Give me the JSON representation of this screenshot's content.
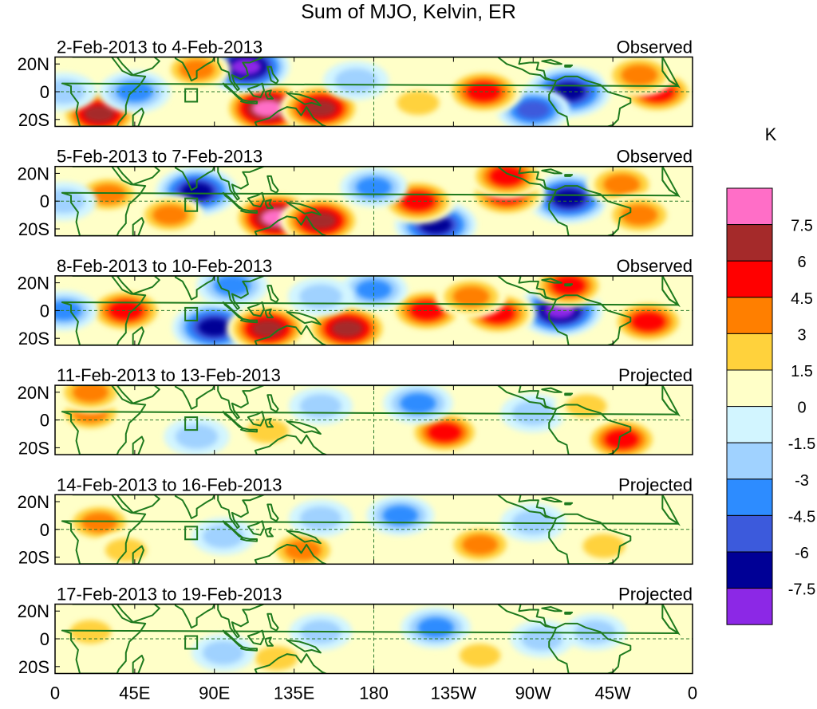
{
  "chart_data": {
    "type": "heatmap",
    "title": "Sum of MJO, Kelvin, ER",
    "units": "K",
    "x_ticks": [
      "0",
      "45E",
      "90E",
      "135E",
      "180",
      "135W",
      "90W",
      "45W",
      "0"
    ],
    "y_ticks": [
      "20N",
      "0",
      "20S"
    ],
    "x_range_deg_east": [
      0,
      360
    ],
    "y_range_deg": [
      -25,
      25
    ],
    "colorbar": {
      "labels": [
        "7.5",
        "6",
        "4.5",
        "3",
        "1.5",
        "0",
        "-1.5",
        "-3",
        "-4.5",
        "-6",
        "-7.5"
      ],
      "colors": [
        "#ff6ec7",
        "#a52a2a",
        "#ff0000",
        "#ff7f00",
        "#ffd23c",
        "#ffffc8",
        "#d2f5ff",
        "#a0d2ff",
        "#2d8cff",
        "#3c5adc",
        "#000096",
        "#8c28e6"
      ]
    },
    "panels": [
      {
        "period": "2-Feb-2013 to 4-Feb-2013",
        "status": "Observed",
        "anomalies": [
          {
            "lon": 120,
            "lat": -12,
            "value": 8.2
          },
          {
            "lon": 150,
            "lat": -12,
            "value": 6.5
          },
          {
            "lon": 25,
            "lat": -16,
            "value": 6.0
          },
          {
            "lon": 108,
            "lat": 18,
            "value": -7.8
          },
          {
            "lon": 290,
            "lat": 0,
            "value": -7.2
          },
          {
            "lon": 270,
            "lat": -13,
            "value": -4.5
          },
          {
            "lon": 242,
            "lat": 0,
            "value": 5.5
          },
          {
            "lon": 340,
            "lat": 0,
            "value": 5.0
          },
          {
            "lon": 330,
            "lat": 12,
            "value": 4.0
          },
          {
            "lon": 45,
            "lat": 0,
            "value": -4.0
          },
          {
            "lon": 80,
            "lat": 16,
            "value": 3.0
          },
          {
            "lon": 170,
            "lat": 8,
            "value": -2.5
          },
          {
            "lon": 5,
            "lat": 0,
            "value": -2.5
          },
          {
            "lon": 205,
            "lat": -8,
            "value": 2.5
          }
        ]
      },
      {
        "period": "5-Feb-2013 to 7-Feb-2013",
        "status": "Observed",
        "anomalies": [
          {
            "lon": 125,
            "lat": -12,
            "value": 8.0
          },
          {
            "lon": 150,
            "lat": -14,
            "value": 6.5
          },
          {
            "lon": 80,
            "lat": 7,
            "value": -6.5
          },
          {
            "lon": 290,
            "lat": 2,
            "value": -7.0
          },
          {
            "lon": 215,
            "lat": -17,
            "value": -6.5
          },
          {
            "lon": 205,
            "lat": 0,
            "value": 5.0
          },
          {
            "lon": 255,
            "lat": 5,
            "value": 5.5
          },
          {
            "lon": 255,
            "lat": 18,
            "value": 5.0
          },
          {
            "lon": 320,
            "lat": 12,
            "value": 4.0
          },
          {
            "lon": 330,
            "lat": -10,
            "value": 4.0
          },
          {
            "lon": 30,
            "lat": 5,
            "value": 3.0
          },
          {
            "lon": 65,
            "lat": -10,
            "value": 3.0
          },
          {
            "lon": 180,
            "lat": 10,
            "value": -3.0
          },
          {
            "lon": 5,
            "lat": 0,
            "value": -2.5
          }
        ]
      },
      {
        "period": "8-Feb-2013 to 10-Feb-2013",
        "status": "Observed",
        "anomalies": [
          {
            "lon": 90,
            "lat": -12,
            "value": -7.2
          },
          {
            "lon": 120,
            "lat": -13,
            "value": 6.5
          },
          {
            "lon": 165,
            "lat": -13,
            "value": 7.0
          },
          {
            "lon": 40,
            "lat": 0,
            "value": 5.5
          },
          {
            "lon": 285,
            "lat": 0,
            "value": -7.5
          },
          {
            "lon": 210,
            "lat": 0,
            "value": 5.0
          },
          {
            "lon": 250,
            "lat": -2,
            "value": 5.0
          },
          {
            "lon": 235,
            "lat": 10,
            "value": 4.0
          },
          {
            "lon": 290,
            "lat": 18,
            "value": 4.5
          },
          {
            "lon": 335,
            "lat": -8,
            "value": 5.0
          },
          {
            "lon": 100,
            "lat": 18,
            "value": -4.0
          },
          {
            "lon": 5,
            "lat": 0,
            "value": -3.0
          },
          {
            "lon": 180,
            "lat": 15,
            "value": -3.0
          },
          {
            "lon": 150,
            "lat": 10,
            "value": -2.5
          }
        ]
      },
      {
        "period": "11-Feb-2013 to 13-Feb-2013",
        "status": "Projected",
        "anomalies": [
          {
            "lon": 20,
            "lat": 5,
            "value": 3.0
          },
          {
            "lon": 20,
            "lat": 20,
            "value": 3.5
          },
          {
            "lon": 220,
            "lat": -9,
            "value": 4.5
          },
          {
            "lon": 320,
            "lat": -14,
            "value": 5.0
          },
          {
            "lon": 205,
            "lat": 12,
            "value": -3.5
          },
          {
            "lon": 270,
            "lat": 5,
            "value": -2.5
          },
          {
            "lon": 120,
            "lat": -8,
            "value": 2.5
          },
          {
            "lon": 80,
            "lat": -12,
            "value": -2.5
          },
          {
            "lon": 150,
            "lat": 10,
            "value": -2.0
          },
          {
            "lon": 300,
            "lat": 10,
            "value": 1.8
          }
        ]
      },
      {
        "period": "14-Feb-2013 to 16-Feb-2013",
        "status": "Projected",
        "anomalies": [
          {
            "lon": 25,
            "lat": 5,
            "value": 3.5
          },
          {
            "lon": 140,
            "lat": -15,
            "value": 4.0
          },
          {
            "lon": 240,
            "lat": -11,
            "value": 3.5
          },
          {
            "lon": 310,
            "lat": -12,
            "value": 2.5
          },
          {
            "lon": 195,
            "lat": 10,
            "value": -3.0
          },
          {
            "lon": 270,
            "lat": 5,
            "value": -2.5
          },
          {
            "lon": 95,
            "lat": -5,
            "value": -2.0
          },
          {
            "lon": 150,
            "lat": 8,
            "value": -2.0
          },
          {
            "lon": 40,
            "lat": -15,
            "value": 2.0
          }
        ]
      },
      {
        "period": "17-Feb-2013 to 19-Feb-2013",
        "status": "Projected",
        "anomalies": [
          {
            "lon": 20,
            "lat": 5,
            "value": 2.0
          },
          {
            "lon": 125,
            "lat": -14,
            "value": 2.5
          },
          {
            "lon": 215,
            "lat": 8,
            "value": -3.5
          },
          {
            "lon": 275,
            "lat": 0,
            "value": -2.0
          },
          {
            "lon": 305,
            "lat": 5,
            "value": -1.8
          },
          {
            "lon": 240,
            "lat": -12,
            "value": 1.8
          },
          {
            "lon": 95,
            "lat": -10,
            "value": -2.0
          },
          {
            "lon": 150,
            "lat": 5,
            "value": -1.8
          }
        ]
      }
    ]
  }
}
